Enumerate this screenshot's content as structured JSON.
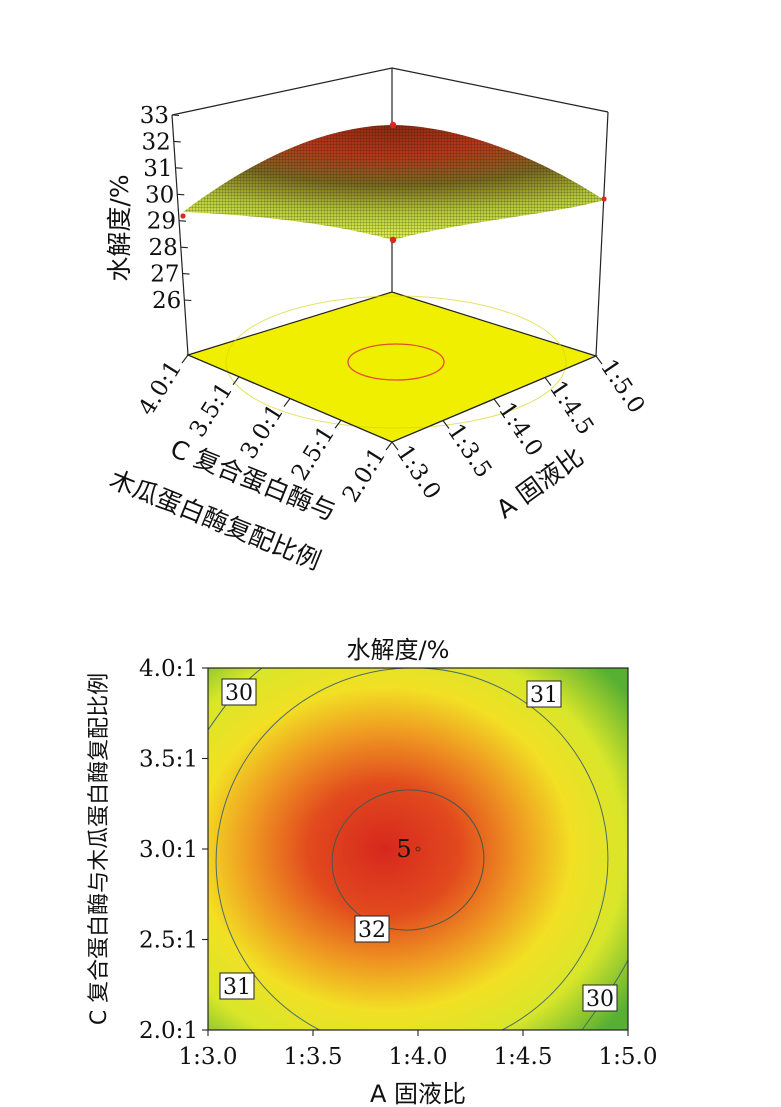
{
  "chart_data": [
    {
      "type": "surface",
      "panel": "response-surface-3d",
      "zlabel": "水解度/%",
      "z_ticks": [
        "33",
        "32",
        "31",
        "30",
        "29",
        "28",
        "27",
        "26"
      ],
      "zlim": [
        26,
        33
      ],
      "x_factor_label": "A 固液比",
      "x_ticks": [
        "1:3.0",
        "1:3.5",
        "1:4.0",
        "1:4.5",
        "1:5.0"
      ],
      "y_factor_label_line1": "C 复合蛋白酶与",
      "y_factor_label_line2": "木瓜蛋白酶复配比例",
      "y_ticks": [
        "2.0:1",
        "2.5:1",
        "3.0:1",
        "3.5:1",
        "4.0:1"
      ],
      "surface_peak": 32.5,
      "surface_corner_values": {
        "left": 29.4,
        "right": 29.6,
        "front": 28.2
      },
      "surface_colors": [
        "#2a2a0a",
        "#d83a20",
        "#c8e03a"
      ],
      "floor_color": "#f0f000",
      "floor_contour_color": "#e05030"
    },
    {
      "type": "contour",
      "panel": "contour-plot-2d",
      "title": "水解度/%",
      "xlabel": "A 固液比",
      "ylabel": "C 复合蛋白酶与木瓜蛋白酶复配比例",
      "x_ticks": [
        "1:3.0",
        "1:3.5",
        "1:4.0",
        "1:4.5",
        "1:5.0"
      ],
      "y_ticks": [
        "2.0:1",
        "2.5:1",
        "3.0:1",
        "3.5:1",
        "4.0:1"
      ],
      "x_range": [
        3.0,
        5.0
      ],
      "y_range": [
        2.0,
        4.0
      ],
      "center": {
        "x": 4.0,
        "y": 3.0,
        "label": "5"
      },
      "contours": [
        {
          "level": "32",
          "label_pos": "lower-center"
        },
        {
          "level": "31",
          "label_pos": "top-right"
        },
        {
          "level": "31",
          "label_pos": "bottom-left"
        },
        {
          "level": "30",
          "label_pos": "top-left"
        },
        {
          "level": "30",
          "label_pos": "bottom-right"
        }
      ],
      "colors": {
        "center": "#d82a1e",
        "mid": "#f0e020",
        "edge": "#3aa830",
        "line": "#4a6a6a"
      }
    }
  ]
}
